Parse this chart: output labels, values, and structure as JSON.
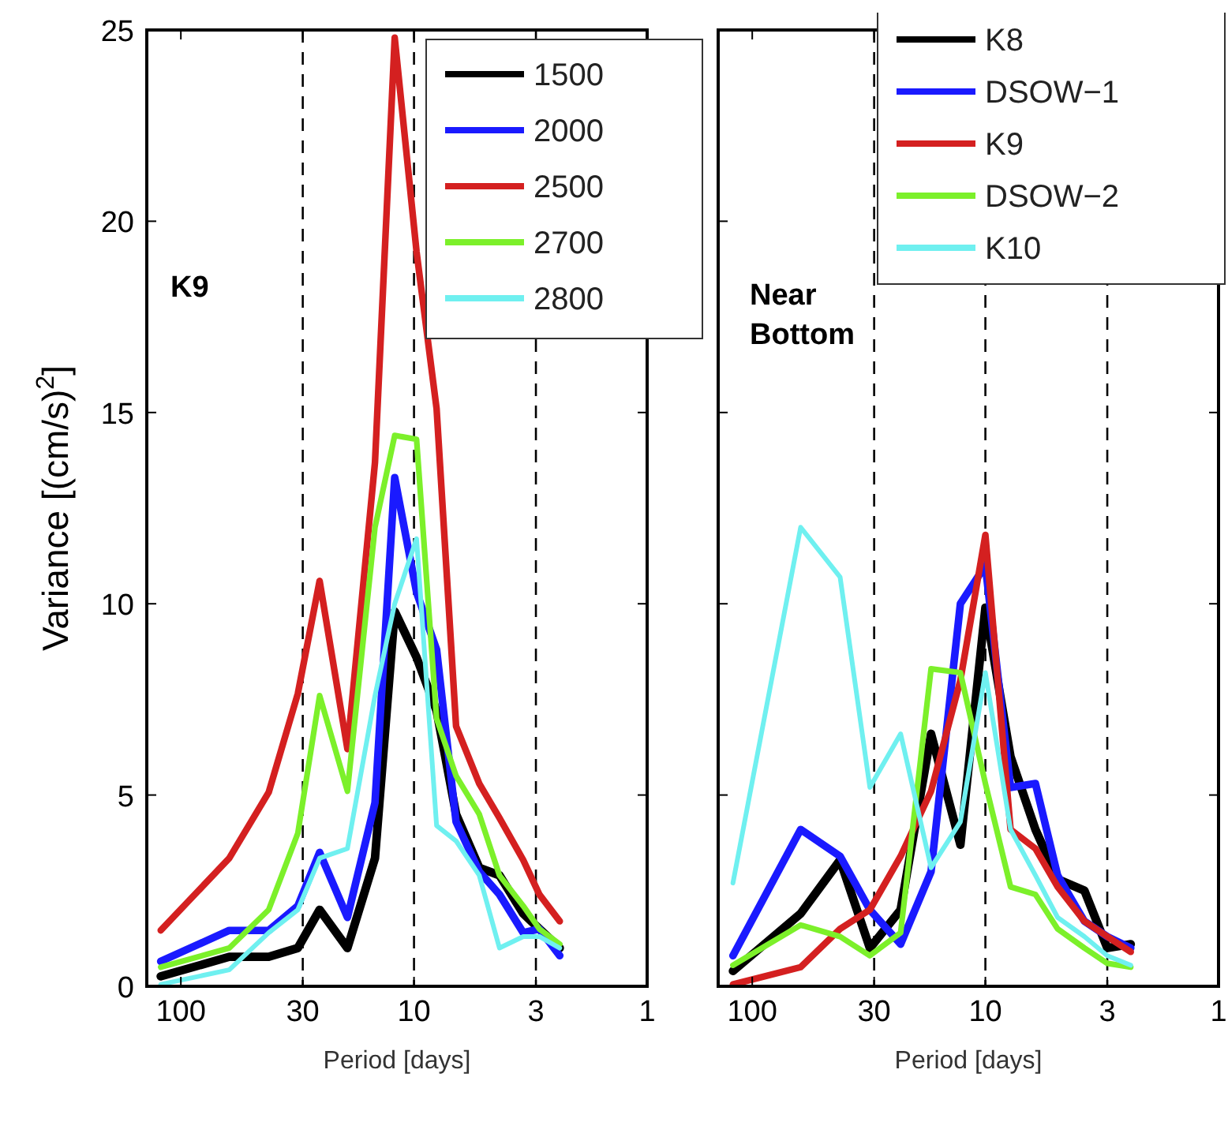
{
  "chart_data": [
    {
      "type": "line",
      "xlabel": "Period [days]",
      "ylabel": "Variance [(cm/s)$^{2}$]",
      "annotations": [
        "K9"
      ],
      "log": "x",
      "legend": "top right",
      "grid": false,
      "line_style": "solid",
      "marker": "none",
      "xlim": [
        140,
        1
      ],
      "xticks": [
        100,
        30,
        10,
        3,
        1
      ],
      "ylim": [
        0,
        25
      ],
      "yticks": [
        0,
        5,
        10,
        15,
        20,
        25
      ],
      "x": [
        122,
        62,
        42,
        31.5,
        25.4,
        19.3,
        14.7,
        12.1,
        9.75,
        8,
        6.6,
        5.25,
        4.3,
        3.4,
        2.9,
        2.37
      ],
      "ref_lines": [
        {
          "axis": "x",
          "value": 30,
          "color": "#000000",
          "line_style": "dashed"
        },
        {
          "axis": "x",
          "value": 10,
          "color": "#000000",
          "line_style": "dashed"
        },
        {
          "axis": "x",
          "value": 3,
          "color": "#000000",
          "line_style": "dashed"
        }
      ],
      "series": [
        {
          "name": "1500",
          "color": "#000000",
          "values": [
            0.26,
            0.77,
            0.77,
            1.0,
            2.0,
            1.0,
            3.35,
            9.8,
            8.6,
            7.2,
            4.5,
            3.1,
            2.9,
            1.9,
            1.5,
            1.0
          ]
        },
        {
          "name": "2000",
          "color": "#1a1aff",
          "values": [
            0.65,
            1.46,
            1.46,
            2.1,
            3.5,
            1.8,
            4.8,
            13.3,
            10.3,
            8.8,
            4.3,
            3.0,
            2.4,
            1.4,
            1.5,
            0.8
          ]
        },
        {
          "name": "2500",
          "color": "#d42020",
          "values": [
            1.46,
            3.35,
            5.07,
            7.65,
            10.6,
            6.2,
            13.7,
            24.8,
            19.2,
            15.1,
            6.8,
            5.3,
            4.4,
            3.3,
            2.4,
            1.7
          ]
        },
        {
          "name": "2700",
          "color": "#7cf02a",
          "values": [
            0.5,
            1.0,
            2.0,
            4.0,
            7.6,
            5.1,
            12.0,
            14.4,
            14.3,
            7.0,
            5.5,
            4.5,
            2.9,
            2.1,
            1.5,
            1.1
          ]
        },
        {
          "name": "2800",
          "color": "#6ff0f0",
          "values": [
            0.05,
            0.43,
            1.4,
            2.0,
            3.35,
            3.6,
            7.6,
            10.0,
            11.7,
            4.2,
            3.8,
            2.9,
            1.0,
            1.3,
            1.3,
            1.0
          ]
        }
      ]
    },
    {
      "type": "line",
      "xlabel": "Period [days]",
      "annotations": [
        "Near Bottom"
      ],
      "log": "x",
      "legend": "top right",
      "grid": false,
      "line_style": "solid",
      "marker": "none",
      "tick_labels": "x",
      "xlim": [
        140,
        1
      ],
      "xticks": [
        100,
        30,
        10,
        3,
        1
      ],
      "ylim": [
        0,
        25
      ],
      "yticks": [
        0,
        5,
        10,
        15,
        20,
        25
      ],
      "x": [
        121,
        62,
        42,
        31.3,
        23.1,
        17.1,
        12.8,
        10,
        7.8,
        6.1,
        4.9,
        3.76,
        3,
        2.38
      ],
      "ref_lines": [
        {
          "axis": "x",
          "value": 30,
          "color": "#000000",
          "line_style": "dashed"
        },
        {
          "axis": "x",
          "value": 10,
          "color": "#000000",
          "line_style": "dashed"
        },
        {
          "axis": "x",
          "value": 3,
          "color": "#000000",
          "line_style": "dashed"
        }
      ],
      "series": [
        {
          "name": "K8",
          "color": "#000000",
          "values": [
            0.4,
            1.9,
            3.3,
            1.0,
            2.0,
            6.6,
            3.7,
            9.9,
            6.0,
            4.1,
            2.8,
            2.5,
            1.0,
            1.1
          ]
        },
        {
          "name": "DSOW−1",
          "color": "#1a1aff",
          "values": [
            0.8,
            4.1,
            3.4,
            2.0,
            1.1,
            3.0,
            10.0,
            11.0,
            5.2,
            5.3,
            2.9,
            1.7,
            1.3,
            1.0
          ]
        },
        {
          "name": "K9",
          "color": "#d42020",
          "values": [
            0.05,
            0.5,
            1.5,
            2.0,
            3.4,
            5.1,
            8.0,
            11.8,
            4.1,
            3.6,
            2.6,
            1.7,
            1.3,
            0.9
          ]
        },
        {
          "name": "DSOW−2",
          "color": "#7cf02a",
          "values": [
            0.55,
            1.6,
            1.3,
            0.8,
            1.4,
            8.3,
            8.2,
            5.3,
            2.6,
            2.4,
            1.5,
            1.0,
            0.6,
            0.5
          ]
        },
        {
          "name": "K10",
          "color": "#6ff0f0",
          "values": [
            2.7,
            12.0,
            10.7,
            5.2,
            6.6,
            3.1,
            4.3,
            8.2,
            4.1,
            2.9,
            1.8,
            1.3,
            0.8,
            0.55
          ]
        }
      ]
    }
  ]
}
